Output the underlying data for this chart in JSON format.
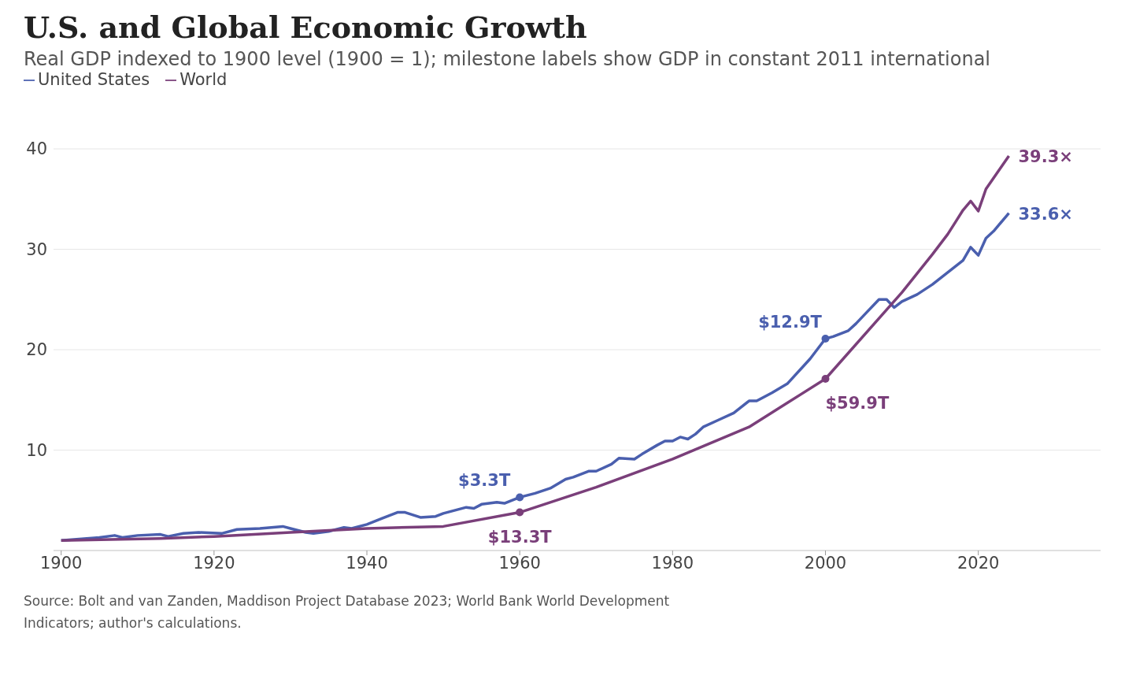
{
  "chart_data": {
    "type": "line",
    "title": "U.S. and Global Economic Growth",
    "subtitle": "Real GDP indexed to 1900 level (1900 = 1); milestone labels show GDP in constant 2011 international",
    "xlim": [
      1899,
      2036
    ],
    "xticks": [
      1900,
      1920,
      1940,
      1960,
      1980,
      2000,
      2020
    ],
    "ylim": [
      0,
      40
    ],
    "yticks": [
      10,
      20,
      30,
      40
    ],
    "grid": "y",
    "legend": "top left",
    "marker": "none",
    "line_style": "solid",
    "series": [
      {
        "name": "United States",
        "color": "#4a5fae",
        "x": [
          1900,
          1905,
          1907,
          1908,
          1910,
          1913,
          1914,
          1916,
          1918,
          1921,
          1923,
          1926,
          1929,
          1930,
          1932,
          1933,
          1935,
          1937,
          1938,
          1940,
          1942,
          1944,
          1945,
          1947,
          1949,
          1950,
          1953,
          1954,
          1955,
          1957,
          1958,
          1960,
          1962,
          1964,
          1966,
          1967,
          1969,
          1970,
          1972,
          1973,
          1975,
          1976,
          1978,
          1979,
          1980,
          1981,
          1982,
          1983,
          1984,
          1986,
          1988,
          1990,
          1991,
          1993,
          1995,
          1998,
          1999,
          2000,
          2001,
          2003,
          2004,
          2005,
          2007,
          2008,
          2009,
          2010,
          2012,
          2014,
          2016,
          2018,
          2019,
          2020,
          2021,
          2022,
          2024
        ],
        "values": [
          1.0,
          1.3,
          1.5,
          1.3,
          1.5,
          1.6,
          1.4,
          1.7,
          1.8,
          1.7,
          2.1,
          2.2,
          2.4,
          2.2,
          1.8,
          1.7,
          1.9,
          2.3,
          2.2,
          2.6,
          3.2,
          3.8,
          3.8,
          3.3,
          3.4,
          3.7,
          4.3,
          4.2,
          4.6,
          4.8,
          4.7,
          5.3,
          5.7,
          6.2,
          7.1,
          7.3,
          7.9,
          7.9,
          8.6,
          9.2,
          9.1,
          9.6,
          10.5,
          10.9,
          10.9,
          11.3,
          11.1,
          11.6,
          12.3,
          13.0,
          13.7,
          14.9,
          14.9,
          15.7,
          16.6,
          19.1,
          20.1,
          21.1,
          21.3,
          21.9,
          22.6,
          23.4,
          25.0,
          25.0,
          24.2,
          24.8,
          25.5,
          26.5,
          27.7,
          28.9,
          30.2,
          29.4,
          31.1,
          31.8,
          33.6
        ]
      },
      {
        "name": "World",
        "color": "#7a3f7a",
        "x": [
          1900,
          1913,
          1920,
          1930,
          1940,
          1950,
          1960,
          1970,
          1980,
          1990,
          2000,
          2010,
          2012,
          2014,
          2016,
          2017,
          2018,
          2019,
          2020,
          2021,
          2022,
          2023,
          2024
        ],
        "values": [
          1.0,
          1.2,
          1.4,
          1.8,
          2.2,
          2.4,
          3.8,
          6.3,
          9.1,
          12.3,
          17.1,
          25.7,
          27.6,
          29.5,
          31.5,
          32.7,
          33.9,
          34.8,
          33.8,
          36.0,
          37.1,
          38.2,
          39.3
        ]
      }
    ],
    "annotations": [
      {
        "text": "$3.3T",
        "x": 1960,
        "y": 5.3
      },
      {
        "text": "$13.3T",
        "x": 1960,
        "y": 3.8
      },
      {
        "text": "$12.9T",
        "x": 2000,
        "y": 21.1
      },
      {
        "text": "$59.9T",
        "x": 2000,
        "y": 17.1
      },
      {
        "text": "39.3×",
        "x": 2024,
        "y": 39.3
      },
      {
        "text": "33.6×",
        "x": 2024,
        "y": 33.6
      },
      "Source: Bolt and van Zanden, Maddison Project Database 2023; World Bank World Development Indicators; author's calculations."
    ]
  }
}
